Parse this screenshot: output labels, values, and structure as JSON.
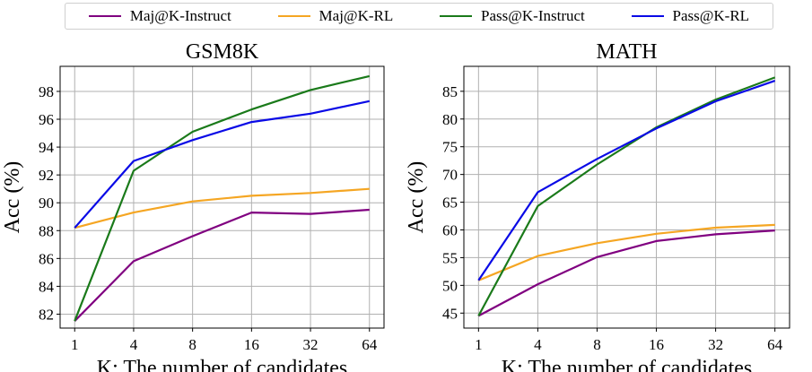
{
  "legend": {
    "items": [
      {
        "label": "Maj@K-Instruct",
        "color": "#800080"
      },
      {
        "label": "Maj@K-RL",
        "color": "#f5a623"
      },
      {
        "label": "Pass@K-Instruct",
        "color": "#1a7a1a"
      },
      {
        "label": "Pass@K-RL",
        "color": "#0a0ae6"
      }
    ]
  },
  "chart_data": [
    {
      "type": "line",
      "title": "GSM8K",
      "xlabel": "K: The number of candidates",
      "ylabel": "Acc (%)",
      "categories": [
        "1",
        "4",
        "8",
        "16",
        "32",
        "64"
      ],
      "ylim": [
        81,
        99.8
      ],
      "yticks": [
        82,
        84,
        86,
        88,
        90,
        92,
        94,
        96,
        98
      ],
      "grid": true,
      "series": [
        {
          "name": "Maj@K-Instruct",
          "color": "#800080",
          "values": [
            81.5,
            85.8,
            87.6,
            89.3,
            89.2,
            89.5
          ]
        },
        {
          "name": "Maj@K-RL",
          "color": "#f5a623",
          "values": [
            88.2,
            89.3,
            90.1,
            90.5,
            90.7,
            91.0
          ]
        },
        {
          "name": "Pass@K-Instruct",
          "color": "#1a7a1a",
          "values": [
            81.5,
            92.3,
            95.1,
            96.7,
            98.1,
            99.1
          ]
        },
        {
          "name": "Pass@K-RL",
          "color": "#0a0ae6",
          "values": [
            88.2,
            93.0,
            94.5,
            95.8,
            96.4,
            97.3
          ]
        }
      ]
    },
    {
      "type": "line",
      "title": "MATH",
      "xlabel": "K: The number of candidates",
      "ylabel": "Acc (%)",
      "categories": [
        "1",
        "4",
        "8",
        "16",
        "32",
        "64"
      ],
      "ylim": [
        42.3,
        89.5
      ],
      "yticks": [
        45,
        50,
        55,
        60,
        65,
        70,
        75,
        80,
        85
      ],
      "grid": true,
      "series": [
        {
          "name": "Maj@K-Instruct",
          "color": "#800080",
          "values": [
            44.5,
            50.2,
            55.1,
            58.0,
            59.2,
            59.9
          ]
        },
        {
          "name": "Maj@K-RL",
          "color": "#f5a623",
          "values": [
            50.9,
            55.3,
            57.6,
            59.3,
            60.4,
            60.9
          ]
        },
        {
          "name": "Pass@K-Instruct",
          "color": "#1a7a1a",
          "values": [
            44.5,
            64.3,
            71.8,
            78.5,
            83.5,
            87.5
          ]
        },
        {
          "name": "Pass@K-RL",
          "color": "#0a0ae6",
          "values": [
            50.9,
            66.8,
            72.8,
            78.3,
            83.2,
            86.9
          ]
        }
      ]
    }
  ]
}
